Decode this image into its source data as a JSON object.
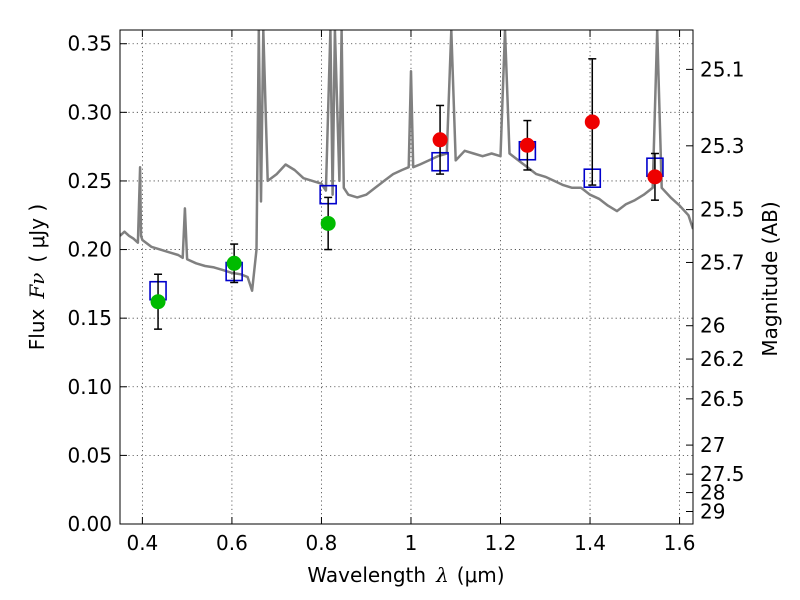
{
  "chart_data": {
    "type": "scatter",
    "title": "",
    "xlabel": "Wavelength",
    "xlabel_symbol": "λ",
    "xlabel_unit": "(μm)",
    "ylabel": "Flux",
    "ylabel_symbol": "Fν",
    "ylabel_unit": "( μJy )",
    "y2label": "Magnitude (AB)",
    "xlim": [
      0.35,
      1.63
    ],
    "ylim": [
      0.0,
      0.36
    ],
    "grid": true,
    "x_ticks": [
      {
        "value": 0.4,
        "label": "0.4"
      },
      {
        "value": 0.6,
        "label": "0.6"
      },
      {
        "value": 0.8,
        "label": "0.8"
      },
      {
        "value": 1.0,
        "label": "1"
      },
      {
        "value": 1.2,
        "label": "1.2"
      },
      {
        "value": 1.4,
        "label": "1.4"
      },
      {
        "value": 1.6,
        "label": "1.6"
      }
    ],
    "y_ticks": [
      {
        "value": 0.0,
        "label": "0.00"
      },
      {
        "value": 0.05,
        "label": "0.05"
      },
      {
        "value": 0.1,
        "label": "0.10"
      },
      {
        "value": 0.15,
        "label": "0.15"
      },
      {
        "value": 0.2,
        "label": "0.20"
      },
      {
        "value": 0.25,
        "label": "0.25"
      },
      {
        "value": 0.3,
        "label": "0.30"
      },
      {
        "value": 0.35,
        "label": "0.35"
      }
    ],
    "y2_ticks": [
      {
        "label": "25.1",
        "flux": 0.3313
      },
      {
        "label": "25.3",
        "flux": 0.2756
      },
      {
        "label": "25.5",
        "flux": 0.2291
      },
      {
        "label": "25.7",
        "flux": 0.1906
      },
      {
        "label": "26",
        "flux": 0.1445
      },
      {
        "label": "26.2",
        "flux": 0.1202
      },
      {
        "label": "26.5",
        "flux": 0.0912
      },
      {
        "label": "27",
        "flux": 0.0575
      },
      {
        "label": "27.5",
        "flux": 0.0363
      },
      {
        "label": "28",
        "flux": 0.0229
      },
      {
        "label": "29",
        "flux": 0.0091
      }
    ],
    "colors": {
      "spectrum": "#808080",
      "green_points": "#00bb00",
      "red_points": "#ee0000",
      "model_squares": "#0000cc",
      "error_bars": "#000000"
    },
    "spectrum": {
      "x": [
        0.35,
        0.36,
        0.37,
        0.38,
        0.39,
        0.395,
        0.397,
        0.4,
        0.42,
        0.44,
        0.46,
        0.48,
        0.49,
        0.495,
        0.5,
        0.52,
        0.54,
        0.56,
        0.58,
        0.6,
        0.62,
        0.635,
        0.645,
        0.655,
        0.66,
        0.665,
        0.67,
        0.68,
        0.7,
        0.72,
        0.74,
        0.76,
        0.78,
        0.8,
        0.81,
        0.82,
        0.825,
        0.83,
        0.84,
        0.845,
        0.85,
        0.86,
        0.88,
        0.9,
        0.92,
        0.94,
        0.96,
        0.98,
        0.995,
        1.0,
        1.005,
        1.02,
        1.04,
        1.06,
        1.08,
        1.09,
        1.1,
        1.12,
        1.14,
        1.16,
        1.18,
        1.2,
        1.21,
        1.22,
        1.24,
        1.26,
        1.28,
        1.3,
        1.32,
        1.34,
        1.36,
        1.38,
        1.4,
        1.42,
        1.44,
        1.46,
        1.48,
        1.5,
        1.52,
        1.54,
        1.55,
        1.56,
        1.58,
        1.6,
        1.62,
        1.63
      ],
      "y": [
        0.21,
        0.213,
        0.21,
        0.208,
        0.205,
        0.26,
        0.21,
        0.207,
        0.202,
        0.2,
        0.198,
        0.196,
        0.194,
        0.23,
        0.193,
        0.19,
        0.188,
        0.187,
        0.185,
        0.183,
        0.182,
        0.18,
        0.17,
        0.2,
        0.36,
        0.235,
        0.36,
        0.25,
        0.255,
        0.262,
        0.258,
        0.252,
        0.25,
        0.248,
        0.243,
        0.36,
        0.24,
        0.36,
        0.25,
        0.36,
        0.245,
        0.24,
        0.238,
        0.24,
        0.245,
        0.25,
        0.255,
        0.258,
        0.26,
        0.33,
        0.26,
        0.262,
        0.265,
        0.268,
        0.27,
        0.36,
        0.265,
        0.272,
        0.27,
        0.268,
        0.27,
        0.268,
        0.36,
        0.27,
        0.265,
        0.26,
        0.255,
        0.253,
        0.25,
        0.247,
        0.245,
        0.245,
        0.24,
        0.237,
        0.232,
        0.228,
        0.233,
        0.236,
        0.24,
        0.245,
        0.36,
        0.245,
        0.238,
        0.232,
        0.225,
        0.215
      ]
    },
    "series": [
      {
        "marker": "circle",
        "color": "#00bb00",
        "x": [
          0.435,
          0.605,
          0.815
        ],
        "y": [
          0.162,
          0.19,
          0.219
        ],
        "err": [
          0.02,
          0.014,
          0.019
        ]
      },
      {
        "marker": "circle",
        "color": "#ee0000",
        "x": [
          1.065,
          1.26,
          1.405,
          1.545
        ],
        "y": [
          0.28,
          0.276,
          0.293,
          0.253
        ],
        "err": [
          0.025,
          0.018,
          0.046,
          0.017
        ]
      },
      {
        "marker": "square",
        "color": "#0000cc",
        "x": [
          0.435,
          0.605,
          0.815,
          1.065,
          1.26,
          1.405,
          1.545
        ],
        "y": [
          0.17,
          0.184,
          0.24,
          0.264,
          0.272,
          0.252,
          0.26
        ]
      }
    ]
  }
}
